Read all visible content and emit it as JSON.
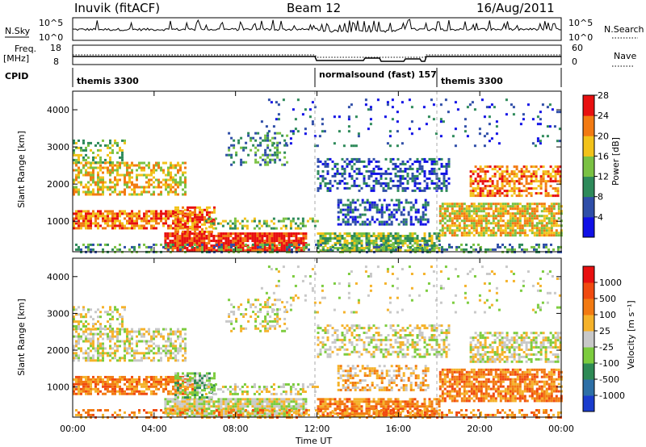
{
  "header": {
    "station": "Inuvik (fitACF)",
    "beam": "Beam 12",
    "date": "16/Aug/2011"
  },
  "strips": {
    "nsky_label": "N.Sky",
    "nsky_ticks": [
      "10^5",
      "10^0"
    ],
    "nsearch_label": "N.Search",
    "nsearch_ticks": [
      "10^5",
      "10^0"
    ],
    "freq_label": "Freq.",
    "freq_unit": "[MHz]",
    "freq_ticks": [
      "18",
      "8"
    ],
    "nave_label": "Nave",
    "nave_ticks": [
      "60",
      "0"
    ],
    "cpid_label": "CPID",
    "cpid_segments": [
      {
        "label": "themis 3300",
        "start_hour": 0
      },
      {
        "label": "normalsound (fast) 157",
        "start_hour": 12
      },
      {
        "label": "themis 3300",
        "start_hour": 18
      }
    ]
  },
  "chart_data": [
    {
      "type": "heatmap",
      "name": "Power",
      "ylabel": "Slant Range [km]",
      "xlim": [
        "00:00",
        "24:00"
      ],
      "ylim": [
        180,
        4500
      ],
      "yticks": [
        "1000",
        "2000",
        "3000",
        "4000"
      ],
      "colorbar": {
        "label": "Power [dB]",
        "ticks": [
          "4",
          "8",
          "12",
          "16",
          "20",
          "24",
          "28"
        ],
        "colors": [
          "#1010e6",
          "#2f4ea8",
          "#2e8a5a",
          "#7ac143",
          "#f2c21a",
          "#f27a12",
          "#e81010"
        ]
      }
    },
    {
      "type": "heatmap",
      "name": "Velocity",
      "ylabel": "Slant Range [km]",
      "xlabel": "Time UT",
      "xlim": [
        "00:00",
        "24:00"
      ],
      "ylim": [
        180,
        4500
      ],
      "xticks": [
        "00:00",
        "04:00",
        "08:00",
        "12:00",
        "16:00",
        "20:00",
        "00:00"
      ],
      "yticks": [
        "1000",
        "2000",
        "3000",
        "4000"
      ],
      "colorbar": {
        "label": "Velocity [m s⁻¹]",
        "ticks": [
          "1000",
          "500",
          "100",
          "25",
          "-25",
          "-100",
          "-500",
          "-1000"
        ],
        "colors": [
          "#1a3ccd",
          "#2d6fa6",
          "#2e8a55",
          "#7ccc3e",
          "#c8c8c8",
          "#f5b22a",
          "#f27a12",
          "#f04a10",
          "#e81010"
        ]
      }
    }
  ]
}
